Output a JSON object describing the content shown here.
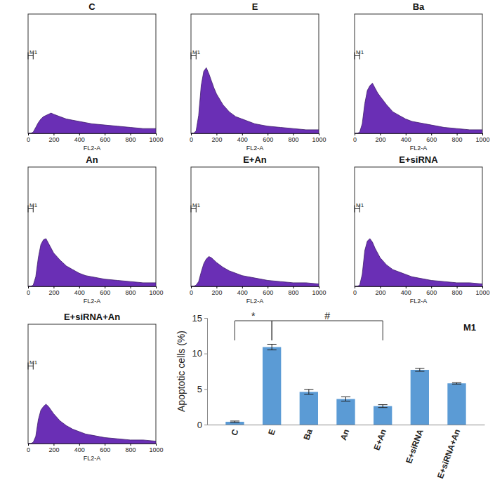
{
  "chart_data": [
    {
      "type": "area",
      "title": "C",
      "xlabel": "FL2-A",
      "color": "#6a2fb5",
      "x": [
        0,
        20,
        40,
        60,
        80,
        100,
        120,
        140,
        160,
        180,
        200,
        250,
        300,
        350,
        400,
        450,
        500,
        600,
        700,
        800,
        900,
        1000
      ],
      "values": [
        0,
        0,
        1,
        5,
        9,
        12,
        14,
        15,
        16,
        17,
        16,
        14,
        12,
        11,
        10,
        9,
        8,
        7,
        6,
        5,
        4,
        4
      ],
      "xlim": [
        0,
        1000
      ],
      "xticks": [
        0,
        200,
        400,
        600,
        800,
        1000
      ],
      "ylim": [
        0,
        100
      ],
      "tick_labels": "x",
      "gate": {
        "label": "M1",
        "x": [
          0,
          40
        ]
      }
    },
    {
      "type": "area",
      "title": "E",
      "xlabel": "FL2-A",
      "color": "#6a2fb5",
      "x": [
        0,
        20,
        40,
        60,
        80,
        100,
        120,
        140,
        160,
        180,
        200,
        250,
        300,
        350,
        400,
        450,
        500,
        600,
        700,
        800,
        900,
        1000
      ],
      "values": [
        0,
        0,
        2,
        15,
        40,
        52,
        55,
        50,
        44,
        38,
        33,
        24,
        18,
        14,
        12,
        10,
        8,
        6,
        5,
        4,
        3,
        3
      ],
      "xlim": [
        0,
        1000
      ],
      "xticks": [
        0,
        200,
        400,
        600,
        800,
        1000
      ],
      "ylim": [
        0,
        100
      ],
      "tick_labels": "x",
      "gate": {
        "label": "M1",
        "x": [
          0,
          40
        ]
      }
    },
    {
      "type": "area",
      "title": "Ba",
      "xlabel": "FL2-A",
      "color": "#6a2fb5",
      "x": [
        0,
        20,
        40,
        60,
        80,
        100,
        120,
        140,
        160,
        180,
        200,
        250,
        300,
        350,
        400,
        450,
        500,
        600,
        700,
        800,
        900,
        1000
      ],
      "values": [
        0,
        0,
        1,
        8,
        25,
        36,
        40,
        42,
        38,
        34,
        31,
        24,
        18,
        15,
        12,
        10,
        9,
        7,
        5,
        4,
        3,
        3
      ],
      "xlim": [
        0,
        1000
      ],
      "xticks": [
        0,
        200,
        400,
        600,
        800,
        1000
      ],
      "ylim": [
        0,
        100
      ],
      "tick_labels": "x",
      "gate": {
        "label": "M1",
        "x": [
          0,
          40
        ]
      }
    },
    {
      "type": "area",
      "title": "An",
      "xlabel": "FL2-A",
      "color": "#6a2fb5",
      "x": [
        0,
        20,
        40,
        60,
        80,
        100,
        120,
        140,
        160,
        180,
        200,
        250,
        300,
        350,
        400,
        450,
        500,
        600,
        700,
        800,
        900,
        1000
      ],
      "values": [
        0,
        0,
        1,
        8,
        24,
        35,
        39,
        40,
        36,
        32,
        28,
        22,
        17,
        14,
        11,
        9,
        8,
        6,
        5,
        4,
        3,
        3
      ],
      "xlim": [
        0,
        1000
      ],
      "xticks": [
        0,
        200,
        400,
        600,
        800,
        1000
      ],
      "ylim": [
        0,
        100
      ],
      "tick_labels": "x",
      "gate": {
        "label": "M1",
        "x": [
          0,
          40
        ]
      }
    },
    {
      "type": "area",
      "title": "E+An",
      "xlabel": "FL2-A",
      "color": "#6a2fb5",
      "x": [
        0,
        20,
        40,
        60,
        80,
        100,
        120,
        140,
        160,
        180,
        200,
        250,
        300,
        350,
        400,
        450,
        500,
        600,
        700,
        800,
        900,
        1000
      ],
      "values": [
        0,
        0,
        1,
        4,
        12,
        19,
        23,
        25,
        24,
        22,
        20,
        16,
        13,
        11,
        9,
        8,
        7,
        5,
        4,
        3,
        3,
        2
      ],
      "xlim": [
        0,
        1000
      ],
      "xticks": [
        0,
        200,
        400,
        600,
        800,
        1000
      ],
      "ylim": [
        0,
        100
      ],
      "tick_labels": "x",
      "gate": {
        "label": "M1",
        "x": [
          0,
          40
        ]
      }
    },
    {
      "type": "area",
      "title": "E+siRNA",
      "xlabel": "FL2-A",
      "color": "#6a2fb5",
      "x": [
        0,
        20,
        40,
        60,
        80,
        100,
        120,
        140,
        160,
        180,
        200,
        250,
        300,
        350,
        400,
        450,
        500,
        600,
        700,
        800,
        900,
        1000
      ],
      "values": [
        0,
        0,
        1,
        10,
        30,
        38,
        40,
        37,
        32,
        28,
        24,
        18,
        14,
        12,
        10,
        8,
        7,
        5,
        4,
        3,
        3,
        2
      ],
      "xlim": [
        0,
        1000
      ],
      "xticks": [
        0,
        200,
        400,
        600,
        800,
        1000
      ],
      "ylim": [
        0,
        100
      ],
      "tick_labels": "x",
      "gate": {
        "label": "M1",
        "x": [
          0,
          40
        ]
      }
    },
    {
      "type": "area",
      "title": "E+siRNA+An",
      "xlabel": "FL2-A",
      "color": "#6a2fb5",
      "x": [
        0,
        20,
        40,
        60,
        80,
        100,
        120,
        140,
        160,
        180,
        200,
        250,
        300,
        350,
        400,
        450,
        500,
        600,
        700,
        800,
        900,
        1000
      ],
      "values": [
        0,
        0,
        1,
        6,
        20,
        28,
        31,
        33,
        31,
        28,
        25,
        19,
        15,
        12,
        10,
        8,
        7,
        5,
        4,
        3,
        3,
        2
      ],
      "xlim": [
        0,
        1000
      ],
      "xticks": [
        0,
        200,
        400,
        600,
        800,
        1000
      ],
      "ylim": [
        0,
        100
      ],
      "tick_labels": "x",
      "gate": {
        "label": "M1",
        "x": [
          0,
          40
        ]
      }
    },
    {
      "type": "bar",
      "title": "M1",
      "ylabel": "Apoptotic cells (%)",
      "color": "#5b9bd5",
      "categories": [
        "C",
        "E",
        "Ba",
        "An",
        "E+An",
        "E+siRNA",
        "E+siRNA+An"
      ],
      "values": [
        0.4,
        10.9,
        4.6,
        3.6,
        2.6,
        7.7,
        5.8
      ],
      "errors": [
        0.1,
        0.4,
        0.35,
        0.3,
        0.2,
        0.2,
        0.1
      ],
      "ylim": [
        0,
        15
      ],
      "yticks": [
        0,
        5,
        10,
        15
      ],
      "grid": false,
      "significance": [
        {
          "text": "*",
          "from": 0,
          "to": 1
        },
        {
          "text": "#",
          "from": 1,
          "to": 4
        }
      ]
    }
  ]
}
